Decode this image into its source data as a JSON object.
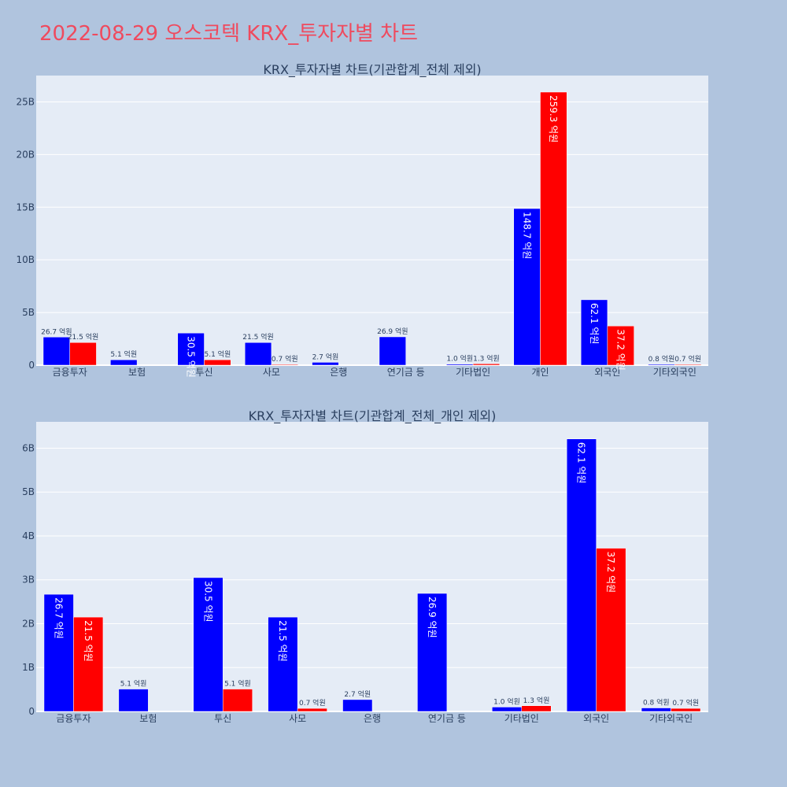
{
  "page": {
    "title": "2022-08-29 오스코텍 KRX_투자자별 차트"
  },
  "colors": {
    "background": "#b0c4de",
    "plot_bg": "#e5ecf6",
    "series_1": "#0000ff",
    "series_2": "#ff0000",
    "title": "#ef4a5e",
    "text": "#2a3f5f"
  },
  "chart_data": [
    {
      "type": "bar",
      "title": "KRX_투자자별 차트(기관합계_전체 제외)",
      "categories": [
        "금융투자",
        "보험",
        "투신",
        "사모",
        "은행",
        "연기금 등",
        "기타법인",
        "개인",
        "외국인",
        "기타외국인"
      ],
      "series": [
        {
          "values": [
            2670000000,
            510000000,
            3050000000,
            2150000000,
            270000000,
            2690000000,
            100000000,
            14870000000,
            6210000000,
            80000000
          ],
          "labels": [
            "26.7 억원",
            "5.1 억원",
            "30.5 억원",
            "21.5 억원",
            "2.7 억원",
            "26.9 억원",
            "1.0 억원",
            "148.7 억원",
            "62.1 억원",
            "0.8 억원"
          ]
        },
        {
          "values": [
            2150000000,
            0,
            510000000,
            70000000,
            0,
            0,
            130000000,
            25930000000,
            3720000000,
            70000000
          ],
          "labels": [
            "21.5 억원",
            "",
            "5.1 억원",
            "0.7 억원",
            "",
            "",
            "1.3 억원",
            "259.3 억원",
            "37.2 억원",
            "0.7 억원"
          ]
        }
      ],
      "yticks": [
        "0",
        "5B",
        "10B",
        "15B",
        "20B",
        "25B"
      ],
      "ylim": [
        0,
        27500000000
      ],
      "grid": true,
      "legend": "none"
    },
    {
      "type": "bar",
      "title": "KRX_투자자별 차트(기관합계_전체_개인 제외)",
      "categories": [
        "금융투자",
        "보험",
        "투신",
        "사모",
        "은행",
        "연기금 등",
        "기타법인",
        "외국인",
        "기타외국인"
      ],
      "series": [
        {
          "values": [
            2670000000,
            510000000,
            3050000000,
            2150000000,
            270000000,
            2690000000,
            100000000,
            6210000000,
            80000000
          ],
          "labels": [
            "26.7 억원",
            "5.1 억원",
            "30.5 억원",
            "21.5 억원",
            "2.7 억원",
            "26.9 억원",
            "1.0 억원",
            "62.1 억원",
            "0.8 억원"
          ]
        },
        {
          "values": [
            2150000000,
            0,
            510000000,
            70000000,
            0,
            0,
            130000000,
            3720000000,
            70000000
          ],
          "labels": [
            "21.5 억원",
            "",
            "5.1 억원",
            "0.7 억원",
            "",
            "",
            "1.3 억원",
            "37.2 억원",
            "0.7 억원"
          ]
        }
      ],
      "yticks": [
        "0",
        "1B",
        "2B",
        "3B",
        "4B",
        "5B",
        "6B"
      ],
      "ylim": [
        0,
        6600000000
      ],
      "grid": true,
      "legend": "none"
    }
  ]
}
